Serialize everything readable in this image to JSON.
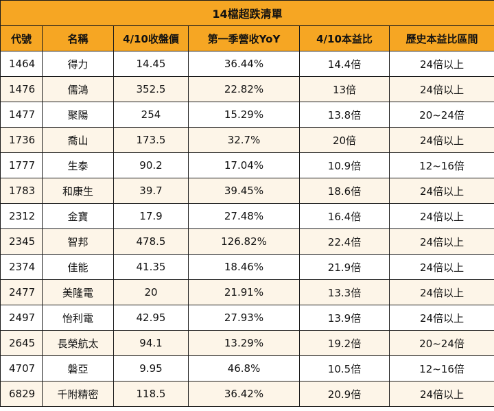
{
  "title": "14檔超跌清單",
  "columns": [
    "代號",
    "名稱",
    "4/10收盤價",
    "第一季營收YoY",
    "4/10本益比",
    "歷史本益比區間"
  ],
  "rows": [
    [
      "1464",
      "得力",
      "14.45",
      "36.44%",
      "14.4倍",
      "24倍以上"
    ],
    [
      "1476",
      "儒鴻",
      "352.5",
      "22.82%",
      "13倍",
      "24倍以上"
    ],
    [
      "1477",
      "聚陽",
      "254",
      "15.29%",
      "13.8倍",
      "20~24倍"
    ],
    [
      "1736",
      "喬山",
      "173.5",
      "32.7%",
      "20倍",
      "24倍以上"
    ],
    [
      "1777",
      "生泰",
      "90.2",
      "17.04%",
      "10.9倍",
      "12~16倍"
    ],
    [
      "1783",
      "和康生",
      "39.7",
      "39.45%",
      "18.6倍",
      "24倍以上"
    ],
    [
      "2312",
      "金寶",
      "17.9",
      "27.48%",
      "16.4倍",
      "24倍以上"
    ],
    [
      "2345",
      "智邦",
      "478.5",
      "126.82%",
      "22.4倍",
      "24倍以上"
    ],
    [
      "2374",
      "佳能",
      "41.35",
      "18.46%",
      "21.9倍",
      "24倍以上"
    ],
    [
      "2477",
      "美隆電",
      "20",
      "21.91%",
      "13.3倍",
      "24倍以上"
    ],
    [
      "2497",
      "怡利電",
      "42.95",
      "27.93%",
      "13.9倍",
      "24倍以上"
    ],
    [
      "2645",
      "長榮航太",
      "94.1",
      "13.29%",
      "19.2倍",
      "20~24倍"
    ],
    [
      "4707",
      "磐亞",
      "9.95",
      "46.8%",
      "10.5倍",
      "12~16倍"
    ],
    [
      "6829",
      "千附精密",
      "118.5",
      "36.42%",
      "20.9倍",
      "24倍以上"
    ]
  ],
  "colors": {
    "header_bg": "#f6a623",
    "stripe_bg": "#fdf5e8",
    "border": "#1a1a1a"
  }
}
